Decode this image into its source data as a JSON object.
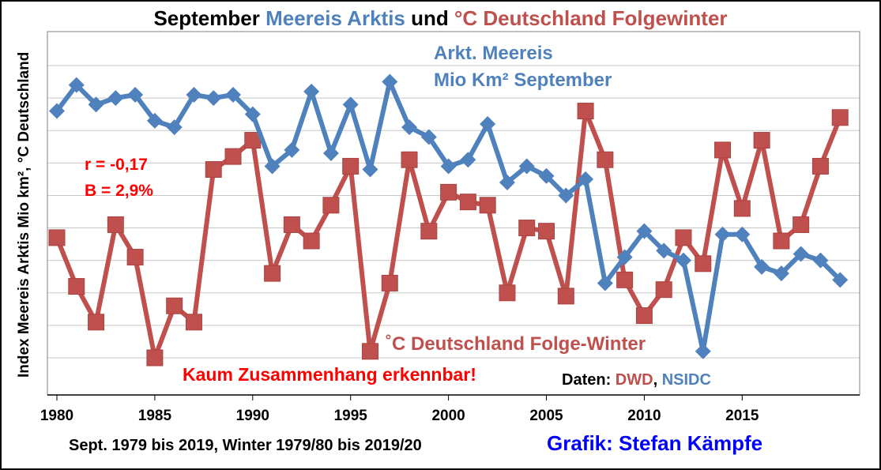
{
  "title": {
    "part1": "September",
    "part2": "Meereis Arktis",
    "part3": "und",
    "part4": "°C Deutschland Folgewinter"
  },
  "y_axis_label": "Index Meereis Arktis Mio km², °C Deutschland",
  "annotations": {
    "legend_ice_line1": "Arkt. Meereis",
    "legend_ice_line2": "Mio Km² September",
    "stat_r": "r = -0,17",
    "stat_b": "B = 2,9%",
    "legend_temp": "˚C Deutschland Folge-Winter",
    "no_correlation": "Kaum Zusammenhang erkennbar!",
    "data_label": "Daten:",
    "data_dwd": "DWD",
    "data_sep": ",",
    "data_nsidc": "NSIDC"
  },
  "footer": {
    "period": "Sept. 1979 bis 2019, Winter 1979/80 bis 2019/20",
    "credit": "Grafik: Stefan Kämpfe"
  },
  "colors": {
    "ice": "#4f81bd",
    "temp": "#c0504d",
    "gridline": "#c8c8c8",
    "emphasis": "#ff0000",
    "credit": "#0000ff"
  },
  "chart_data": {
    "type": "line",
    "grid": true,
    "x_ticks": [
      "1980",
      "1985",
      "1990",
      "1995",
      "2000",
      "2005",
      "2010",
      "2015"
    ],
    "x": [
      1980,
      1981,
      1982,
      1983,
      1984,
      1985,
      1986,
      1987,
      1988,
      1989,
      1990,
      1991,
      1992,
      1993,
      1994,
      1995,
      1996,
      1997,
      1998,
      1999,
      2000,
      2001,
      2002,
      2003,
      2004,
      2005,
      2006,
      2007,
      2008,
      2009,
      2010,
      2011,
      2012,
      2013,
      2014,
      2015,
      2016,
      2017,
      2018,
      2019,
      2020
    ],
    "xlim": [
      1980,
      2021
    ],
    "ylim": [
      0,
      9
    ],
    "series": [
      {
        "name": "Arkt. Meereis Mio Km² September",
        "color": "#4f81bd",
        "marker": "diamond",
        "values": [
          7.6,
          8.4,
          7.8,
          8.0,
          8.1,
          7.3,
          7.1,
          8.1,
          8.0,
          8.1,
          7.5,
          5.9,
          6.4,
          8.2,
          6.3,
          7.8,
          5.8,
          8.5,
          7.1,
          6.8,
          5.9,
          6.1,
          7.2,
          5.4,
          5.9,
          5.6,
          5.0,
          5.5,
          2.3,
          3.1,
          3.9,
          3.3,
          3.0,
          0.2,
          3.8,
          3.8,
          2.8,
          2.6,
          3.2,
          3.0,
          2.4
        ]
      },
      {
        "name": "˚C Deutschland Folge-Winter",
        "color": "#c0504d",
        "marker": "square",
        "values": [
          3.7,
          2.2,
          1.1,
          4.1,
          3.1,
          0.0,
          1.6,
          1.1,
          5.8,
          6.2,
          6.7,
          2.6,
          4.1,
          3.6,
          4.7,
          5.9,
          0.2,
          2.3,
          6.1,
          3.9,
          5.1,
          4.8,
          4.7,
          2.0,
          4.0,
          3.9,
          1.9,
          7.6,
          6.1,
          2.4,
          1.3,
          2.1,
          3.7,
          2.9,
          6.4,
          4.6,
          6.7,
          3.6,
          4.1,
          5.9,
          7.4
        ]
      }
    ]
  }
}
